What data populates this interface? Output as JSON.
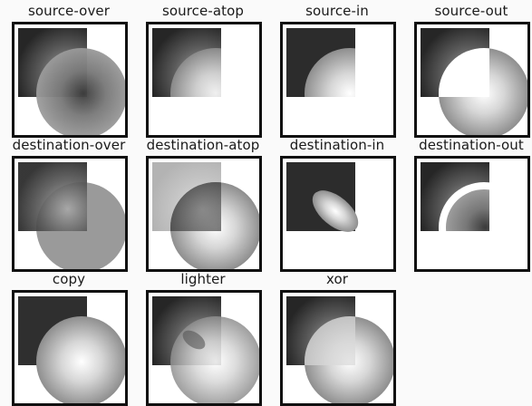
{
  "diagram": {
    "cells": [
      {
        "label": "source-over"
      },
      {
        "label": "source-atop"
      },
      {
        "label": "source-in"
      },
      {
        "label": "source-out"
      },
      {
        "label": "destination-over"
      },
      {
        "label": "destination-atop"
      },
      {
        "label": "destination-in"
      },
      {
        "label": "destination-out"
      },
      {
        "label": "copy"
      },
      {
        "label": "lighter"
      },
      {
        "label": "xor"
      }
    ]
  }
}
